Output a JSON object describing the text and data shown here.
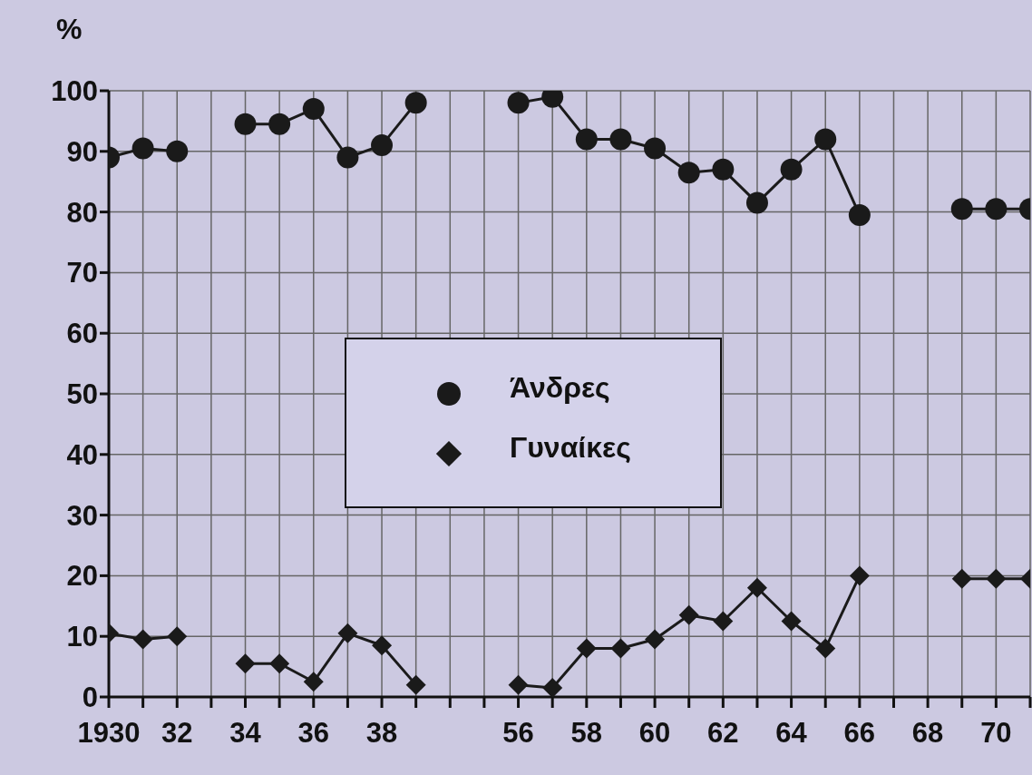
{
  "chart_data": {
    "type": "line",
    "ylabel": "%",
    "categories": [
      "1930",
      null,
      "32",
      null,
      "34",
      null,
      "36",
      null,
      "38",
      null,
      null,
      null,
      "56",
      null,
      "58",
      null,
      "60",
      null,
      "62",
      null,
      "64",
      null,
      "66",
      null,
      "68",
      null,
      "70",
      null
    ],
    "series": [
      {
        "name": "Άνδρες",
        "color": "#1a1a1a",
        "marker": "circle",
        "values": [
          89,
          90.5,
          90,
          null,
          94.5,
          94.5,
          97,
          89,
          91,
          98,
          null,
          null,
          98,
          99,
          92,
          92,
          90.5,
          86.5,
          87,
          81.5,
          87,
          92,
          79.5,
          null,
          null,
          80.5,
          80.5,
          80.5
        ]
      },
      {
        "name": "Γυναίκες",
        "color": "#1a1a1a",
        "marker": "diamond",
        "values": [
          10.5,
          9.5,
          10,
          null,
          5.5,
          5.5,
          2.5,
          10.5,
          8.5,
          2,
          null,
          null,
          2,
          1.5,
          8,
          8,
          9.5,
          13.5,
          12.5,
          18,
          12.5,
          8,
          20,
          null,
          null,
          19.5,
          19.5,
          19.5
        ]
      }
    ],
    "ylim": [
      0,
      100
    ],
    "yticks": [
      0,
      10,
      20,
      30,
      40,
      50,
      60,
      70,
      80,
      90,
      100
    ],
    "grid": true,
    "legend": "center",
    "line_style": "solid"
  }
}
